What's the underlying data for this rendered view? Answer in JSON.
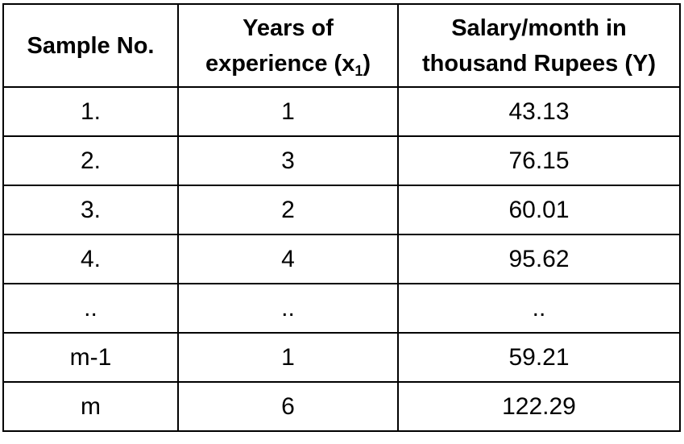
{
  "table": {
    "headers": {
      "sample": "Sample No.",
      "years_line1": "Years of",
      "years_line2_prefix": "experience (x",
      "years_sub": "1",
      "years_suffix": ")",
      "salary_line1": "Salary/month in",
      "salary_line2": "thousand Rupees (Y)"
    },
    "rows": [
      {
        "sample": "1.",
        "years": "1",
        "salary": "43.13"
      },
      {
        "sample": "2.",
        "years": "3",
        "salary": "76.15"
      },
      {
        "sample": "3.",
        "years": "2",
        "salary": "60.01"
      },
      {
        "sample": "4.",
        "years": "4",
        "salary": "95.62"
      },
      {
        "sample": "..",
        "years": "..",
        "salary": ".."
      },
      {
        "sample": "m-1",
        "years": "1",
        "salary": "59.21"
      },
      {
        "sample": "m",
        "years": "6",
        "salary": "122.29"
      }
    ]
  }
}
